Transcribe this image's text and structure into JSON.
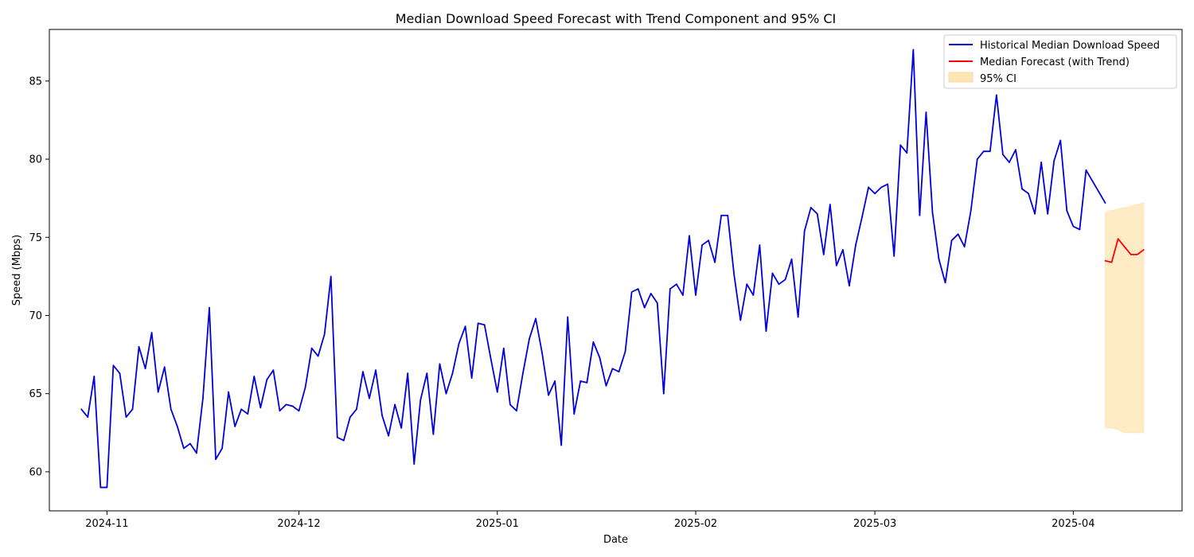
{
  "chart_data": {
    "type": "line",
    "title": "Median Download Speed Forecast with Trend Component and 95% CI",
    "xlabel": "Date",
    "ylabel": "Speed (Mbps)",
    "xlim": [
      "2024-10-23",
      "2025-04-18"
    ],
    "ylim": [
      57.5,
      88.3
    ],
    "x_ticks": [
      "2024-11-01",
      "2024-12-01",
      "2025-01-01",
      "2025-02-01",
      "2025-03-01",
      "2025-04-01"
    ],
    "x_tick_labels": [
      "2024-11",
      "2024-12",
      "2025-01",
      "2025-02",
      "2025-03",
      "2025-04"
    ],
    "y_ticks": [
      60,
      65,
      70,
      75,
      80,
      85
    ],
    "grid": false,
    "legend_position": "top-right",
    "series": [
      {
        "name": "Historical Median Download Speed",
        "color": "#0000dd",
        "start": "2024-10-28",
        "values": [
          64.0,
          63.5,
          66.1,
          59.0,
          59.0,
          66.8,
          66.3,
          63.5,
          64.0,
          68.0,
          66.6,
          68.9,
          65.1,
          66.7,
          64.0,
          62.9,
          61.5,
          61.8,
          61.2,
          64.7,
          70.5,
          60.8,
          61.5,
          65.1,
          62.9,
          64.0,
          63.7,
          66.1,
          64.1,
          65.9,
          66.5,
          63.9,
          64.3,
          64.2,
          63.9,
          65.4,
          67.9,
          67.4,
          68.8,
          72.5,
          62.2,
          62.0,
          63.5,
          64.0,
          66.4,
          64.7,
          66.5,
          63.6,
          62.3,
          64.3,
          62.8,
          66.3,
          60.5,
          64.6,
          66.3,
          62.4,
          66.9,
          65.0,
          66.3,
          68.2,
          69.3,
          66.0,
          69.5,
          69.4,
          67.2,
          65.1,
          67.9,
          64.3,
          63.9,
          66.3,
          68.5,
          69.8,
          67.6,
          64.9,
          65.8,
          61.7,
          69.9,
          63.7,
          65.8,
          65.7,
          68.3,
          67.3,
          65.5,
          66.6,
          66.4,
          67.7,
          71.5,
          71.7,
          70.5,
          71.4,
          70.8,
          65.0,
          71.7,
          72.0,
          71.3,
          75.1,
          71.3,
          74.5,
          74.8,
          73.4,
          76.4,
          76.4,
          72.6,
          69.7,
          72.0,
          71.3,
          74.5,
          69.0,
          72.7,
          72.0,
          72.3,
          73.6,
          69.9,
          75.4,
          76.9,
          76.5,
          73.9,
          77.1,
          73.2,
          74.2,
          71.9,
          74.5,
          76.3,
          78.2,
          77.8,
          78.2,
          78.4,
          73.8,
          80.9,
          80.4,
          87.0,
          76.4,
          83.0,
          76.6,
          73.6,
          72.1,
          74.8,
          75.2,
          74.4,
          76.7,
          80.0,
          80.5,
          80.5,
          84.1,
          80.3,
          79.8,
          80.6,
          78.1,
          77.8,
          76.5,
          79.8,
          76.5,
          79.9,
          81.2,
          76.7,
          75.7,
          75.5,
          79.3,
          78.6,
          77.9,
          77.2
        ]
      },
      {
        "name": "Median Forecast (with Trend)",
        "color": "#ff0000",
        "start": "2025-04-06",
        "values": [
          73.5,
          73.4,
          74.9,
          74.4,
          73.9,
          73.9,
          74.2
        ]
      }
    ],
    "ci": {
      "name": "95% CI",
      "color": "#ffe5b4",
      "start": "2025-04-06",
      "upper": [
        76.6,
        76.7,
        76.8,
        76.9,
        77.0,
        77.1,
        77.2
      ],
      "lower": [
        62.8,
        62.8,
        62.7,
        62.5,
        62.5,
        62.5,
        62.5
      ]
    }
  }
}
